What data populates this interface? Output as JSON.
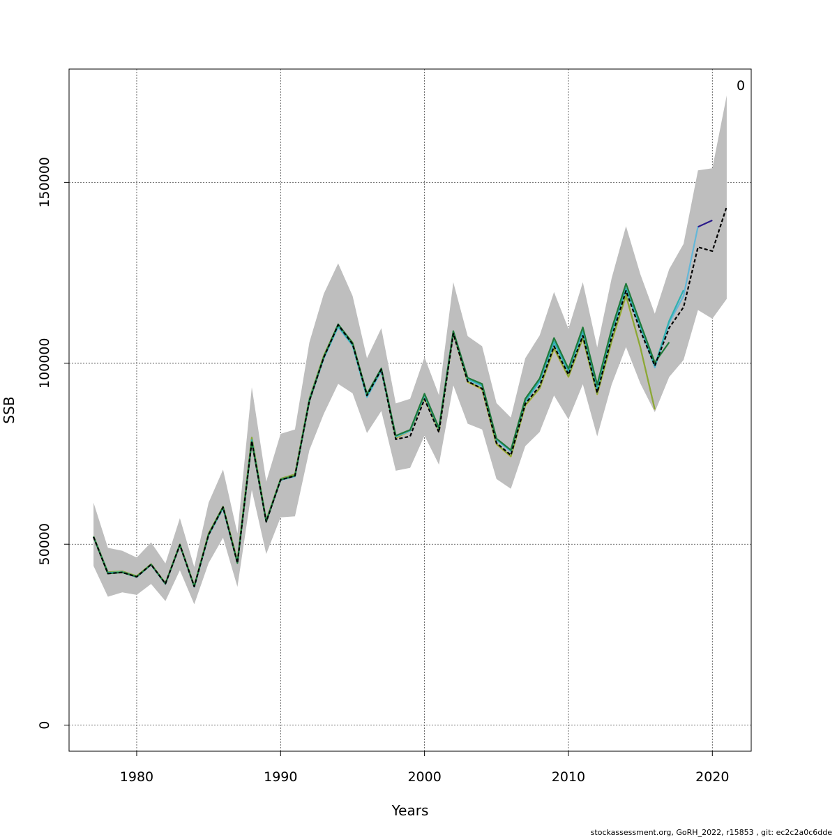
{
  "chart_data": {
    "type": "line",
    "title": "",
    "xlabel": "Years",
    "ylabel": "SSB",
    "xlim": [
      1975.3,
      2022.7
    ],
    "ylim": [
      -7200,
      181300
    ],
    "x_ticks": [
      1980,
      1990,
      2000,
      2010,
      2020
    ],
    "y_ticks": [
      0,
      50000,
      100000,
      150000
    ],
    "x_tick_labels": [
      "1980",
      "1990",
      "2000",
      "2010",
      "2020"
    ],
    "y_tick_labels": [
      "0",
      "50000",
      "100000",
      "150000"
    ],
    "grid": true,
    "corner_label": "0",
    "footer": "stockassessment.org, GoRH_2022, r15853 , git: ec2c2a0c6dde",
    "band": {
      "color": "#bebebe",
      "x": [
        1977,
        1978,
        1979,
        1980,
        1981,
        1982,
        1983,
        1984,
        1985,
        1986,
        1987,
        1988,
        1989,
        1990,
        1991,
        1992,
        1993,
        1994,
        1995,
        1996,
        1997,
        1998,
        1999,
        2000,
        2001,
        2002,
        2003,
        2004,
        2005,
        2006,
        2007,
        2008,
        2009,
        2010,
        2011,
        2012,
        2013,
        2014,
        2015,
        2016,
        2017,
        2018,
        2019,
        2020,
        2021
      ],
      "upper": [
        61500,
        49000,
        48200,
        46300,
        50500,
        44700,
        57200,
        43700,
        61500,
        70600,
        53000,
        93400,
        67300,
        80500,
        81700,
        105800,
        119200,
        127600,
        118600,
        101400,
        109700,
        88900,
        90200,
        101700,
        91200,
        122400,
        107500,
        104700,
        89000,
        85000,
        101400,
        107700,
        119700,
        109500,
        122400,
        104400,
        123500,
        137900,
        124600,
        113700,
        126000,
        133000,
        153300,
        153900,
        174000
      ],
      "lower": [
        44000,
        35500,
        36700,
        36000,
        39000,
        34300,
        42800,
        33400,
        44800,
        51800,
        38200,
        65000,
        47300,
        57400,
        57700,
        76000,
        86000,
        94300,
        91700,
        80700,
        86800,
        70300,
        71100,
        80000,
        72000,
        93900,
        83300,
        81700,
        68000,
        65300,
        77100,
        81000,
        91100,
        84500,
        94200,
        79800,
        94100,
        104500,
        94400,
        86500,
        96200,
        100900,
        114700,
        112300,
        117800
      ]
    },
    "series": [
      {
        "color": "#e0b33a",
        "x": [
          1977,
          1978,
          1979,
          1980,
          1981,
          1982,
          1983,
          1984,
          1985,
          1986,
          1987,
          1988,
          1989,
          1990,
          1991,
          1992,
          1993,
          1994,
          1995,
          1996,
          1997,
          1998,
          1999,
          2000,
          2001,
          2002,
          2003,
          2004,
          2005,
          2006,
          2007,
          2008,
          2009,
          2010,
          2011,
          2012,
          2013,
          2014,
          2015,
          2016
        ],
        "values": [
          52200,
          42200,
          42400,
          41200,
          44500,
          39200,
          50000,
          38400,
          52900,
          60300,
          45400,
          79400,
          56600,
          68000,
          69200,
          90200,
          102000,
          110600,
          105600,
          91300,
          98100,
          79300,
          81300,
          90400,
          81300,
          108200,
          94800,
          92800,
          77600,
          74200,
          88300,
          93000,
          104000,
          96200,
          106900,
          91400,
          106000,
          118600,
          104300,
          87200
        ]
      },
      {
        "color": "#88a838",
        "x": [
          1977,
          1978,
          1979,
          1980,
          1981,
          1982,
          1983,
          1984,
          1985,
          1986,
          1987,
          1988,
          1989,
          1990,
          1991,
          1992,
          1993,
          1994,
          1995,
          1996,
          1997,
          1998,
          1999,
          2000,
          2001,
          2002,
          2003,
          2004,
          2005,
          2006,
          2007,
          2008,
          2009,
          2010,
          2011,
          2012,
          2013,
          2014,
          2015,
          2016
        ],
        "values": [
          52200,
          42300,
          42500,
          41200,
          44500,
          39200,
          50000,
          38500,
          53000,
          60400,
          45500,
          79500,
          56700,
          68100,
          69300,
          90300,
          102100,
          110700,
          105700,
          91400,
          98200,
          79400,
          81400,
          90500,
          81400,
          108300,
          94900,
          93000,
          77700,
          74300,
          88400,
          93100,
          104200,
          96300,
          107000,
          91500,
          106100,
          118800,
          104400,
          87300
        ]
      },
      {
        "color": "#64b7d8",
        "x": [
          1977,
          1978,
          1979,
          1980,
          1981,
          1982,
          1983,
          1984,
          1985,
          1986,
          1987,
          1988,
          1989,
          1990,
          1991,
          1992,
          1993,
          1994,
          1995,
          1996,
          1997,
          1998,
          1999,
          2000,
          2001,
          2002,
          2003,
          2004,
          2005,
          2006,
          2007,
          2008,
          2009,
          2010,
          2011,
          2012,
          2013,
          2014,
          2015,
          2016,
          2017,
          2018,
          2019
        ],
        "values": [
          52000,
          42000,
          42200,
          40900,
          44300,
          39000,
          49800,
          38200,
          52500,
          59900,
          44900,
          78500,
          56200,
          67700,
          68700,
          89600,
          101300,
          110000,
          104900,
          90600,
          97900,
          79700,
          81300,
          91100,
          81900,
          108500,
          95500,
          93700,
          78800,
          75600,
          89300,
          94900,
          105600,
          97500,
          108500,
          92800,
          108200,
          120300,
          109900,
          98800,
          111200,
          118600,
          137800
        ]
      },
      {
        "color": "#30b0b0",
        "x": [
          1977,
          1978,
          1979,
          1980,
          1981,
          1982,
          1983,
          1984,
          1985,
          1986,
          1987,
          1988,
          1989,
          1990,
          1991,
          1992,
          1993,
          1994,
          1995,
          1996,
          1997,
          1998,
          1999,
          2000,
          2001,
          2002,
          2003,
          2004,
          2005,
          2006,
          2007,
          2008,
          2009,
          2010,
          2011,
          2012,
          2013,
          2014,
          2015,
          2016,
          2017,
          2018
        ],
        "values": [
          52100,
          42100,
          42300,
          41000,
          44400,
          39100,
          49900,
          38300,
          52700,
          60100,
          45000,
          78800,
          56400,
          67900,
          68900,
          90000,
          101700,
          110300,
          105100,
          90900,
          98200,
          79900,
          81500,
          91300,
          82100,
          108700,
          95700,
          93900,
          79000,
          75900,
          89600,
          95200,
          106000,
          97800,
          108900,
          93100,
          108600,
          120700,
          110300,
          99300,
          111700,
          120200
        ]
      },
      {
        "color": "#2a1a8a",
        "x": [
          2019,
          2020
        ],
        "values": [
          137700,
          139500
        ]
      },
      {
        "color": "#1f7a3a",
        "x": [
          1977,
          1978,
          1979,
          1980,
          1981,
          1982,
          1983,
          1984,
          1985,
          1986,
          1987,
          1988,
          1989,
          1990,
          1991,
          1992,
          1993,
          1994,
          1995,
          1996,
          1997,
          1998,
          1999,
          2000,
          2001,
          2002,
          2003,
          2004,
          2005,
          2006,
          2007,
          2008,
          2009,
          2010,
          2011,
          2012,
          2013,
          2014,
          2015,
          2016,
          2017
        ],
        "values": [
          52000,
          41900,
          42200,
          41000,
          44400,
          39100,
          49800,
          38300,
          52700,
          60300,
          44800,
          78300,
          56200,
          67800,
          68900,
          89600,
          101700,
          110800,
          105600,
          91500,
          98600,
          80000,
          81600,
          91600,
          82100,
          108900,
          96000,
          94300,
          79200,
          76000,
          90200,
          95800,
          107000,
          98500,
          109900,
          94100,
          109500,
          122000,
          111000,
          100200,
          105800
        ]
      },
      {
        "color": "#000000",
        "dashed": true,
        "x": [
          1977,
          1978,
          1979,
          1980,
          1981,
          1982,
          1983,
          1984,
          1985,
          1986,
          1987,
          1988,
          1989,
          1990,
          1991,
          1992,
          1993,
          1994,
          1995,
          1996,
          1997,
          1998,
          1999,
          2000,
          2001,
          2002,
          2003,
          2004,
          2005,
          2006,
          2007,
          2008,
          2009,
          2010,
          2011,
          2012,
          2013,
          2014,
          2015,
          2016,
          2017,
          2018,
          2019,
          2020,
          2021
        ],
        "values": [
          52000,
          41900,
          42200,
          41000,
          44400,
          39100,
          49800,
          38300,
          52600,
          60200,
          44800,
          78500,
          56200,
          67800,
          68900,
          89700,
          101600,
          110600,
          105300,
          91100,
          98300,
          79000,
          79800,
          90100,
          80900,
          108200,
          95000,
          93000,
          78000,
          74600,
          88800,
          93700,
          104700,
          96900,
          107600,
          91900,
          107200,
          120000,
          109000,
          99300,
          109800,
          115500,
          132100,
          131000,
          143300
        ]
      }
    ]
  }
}
